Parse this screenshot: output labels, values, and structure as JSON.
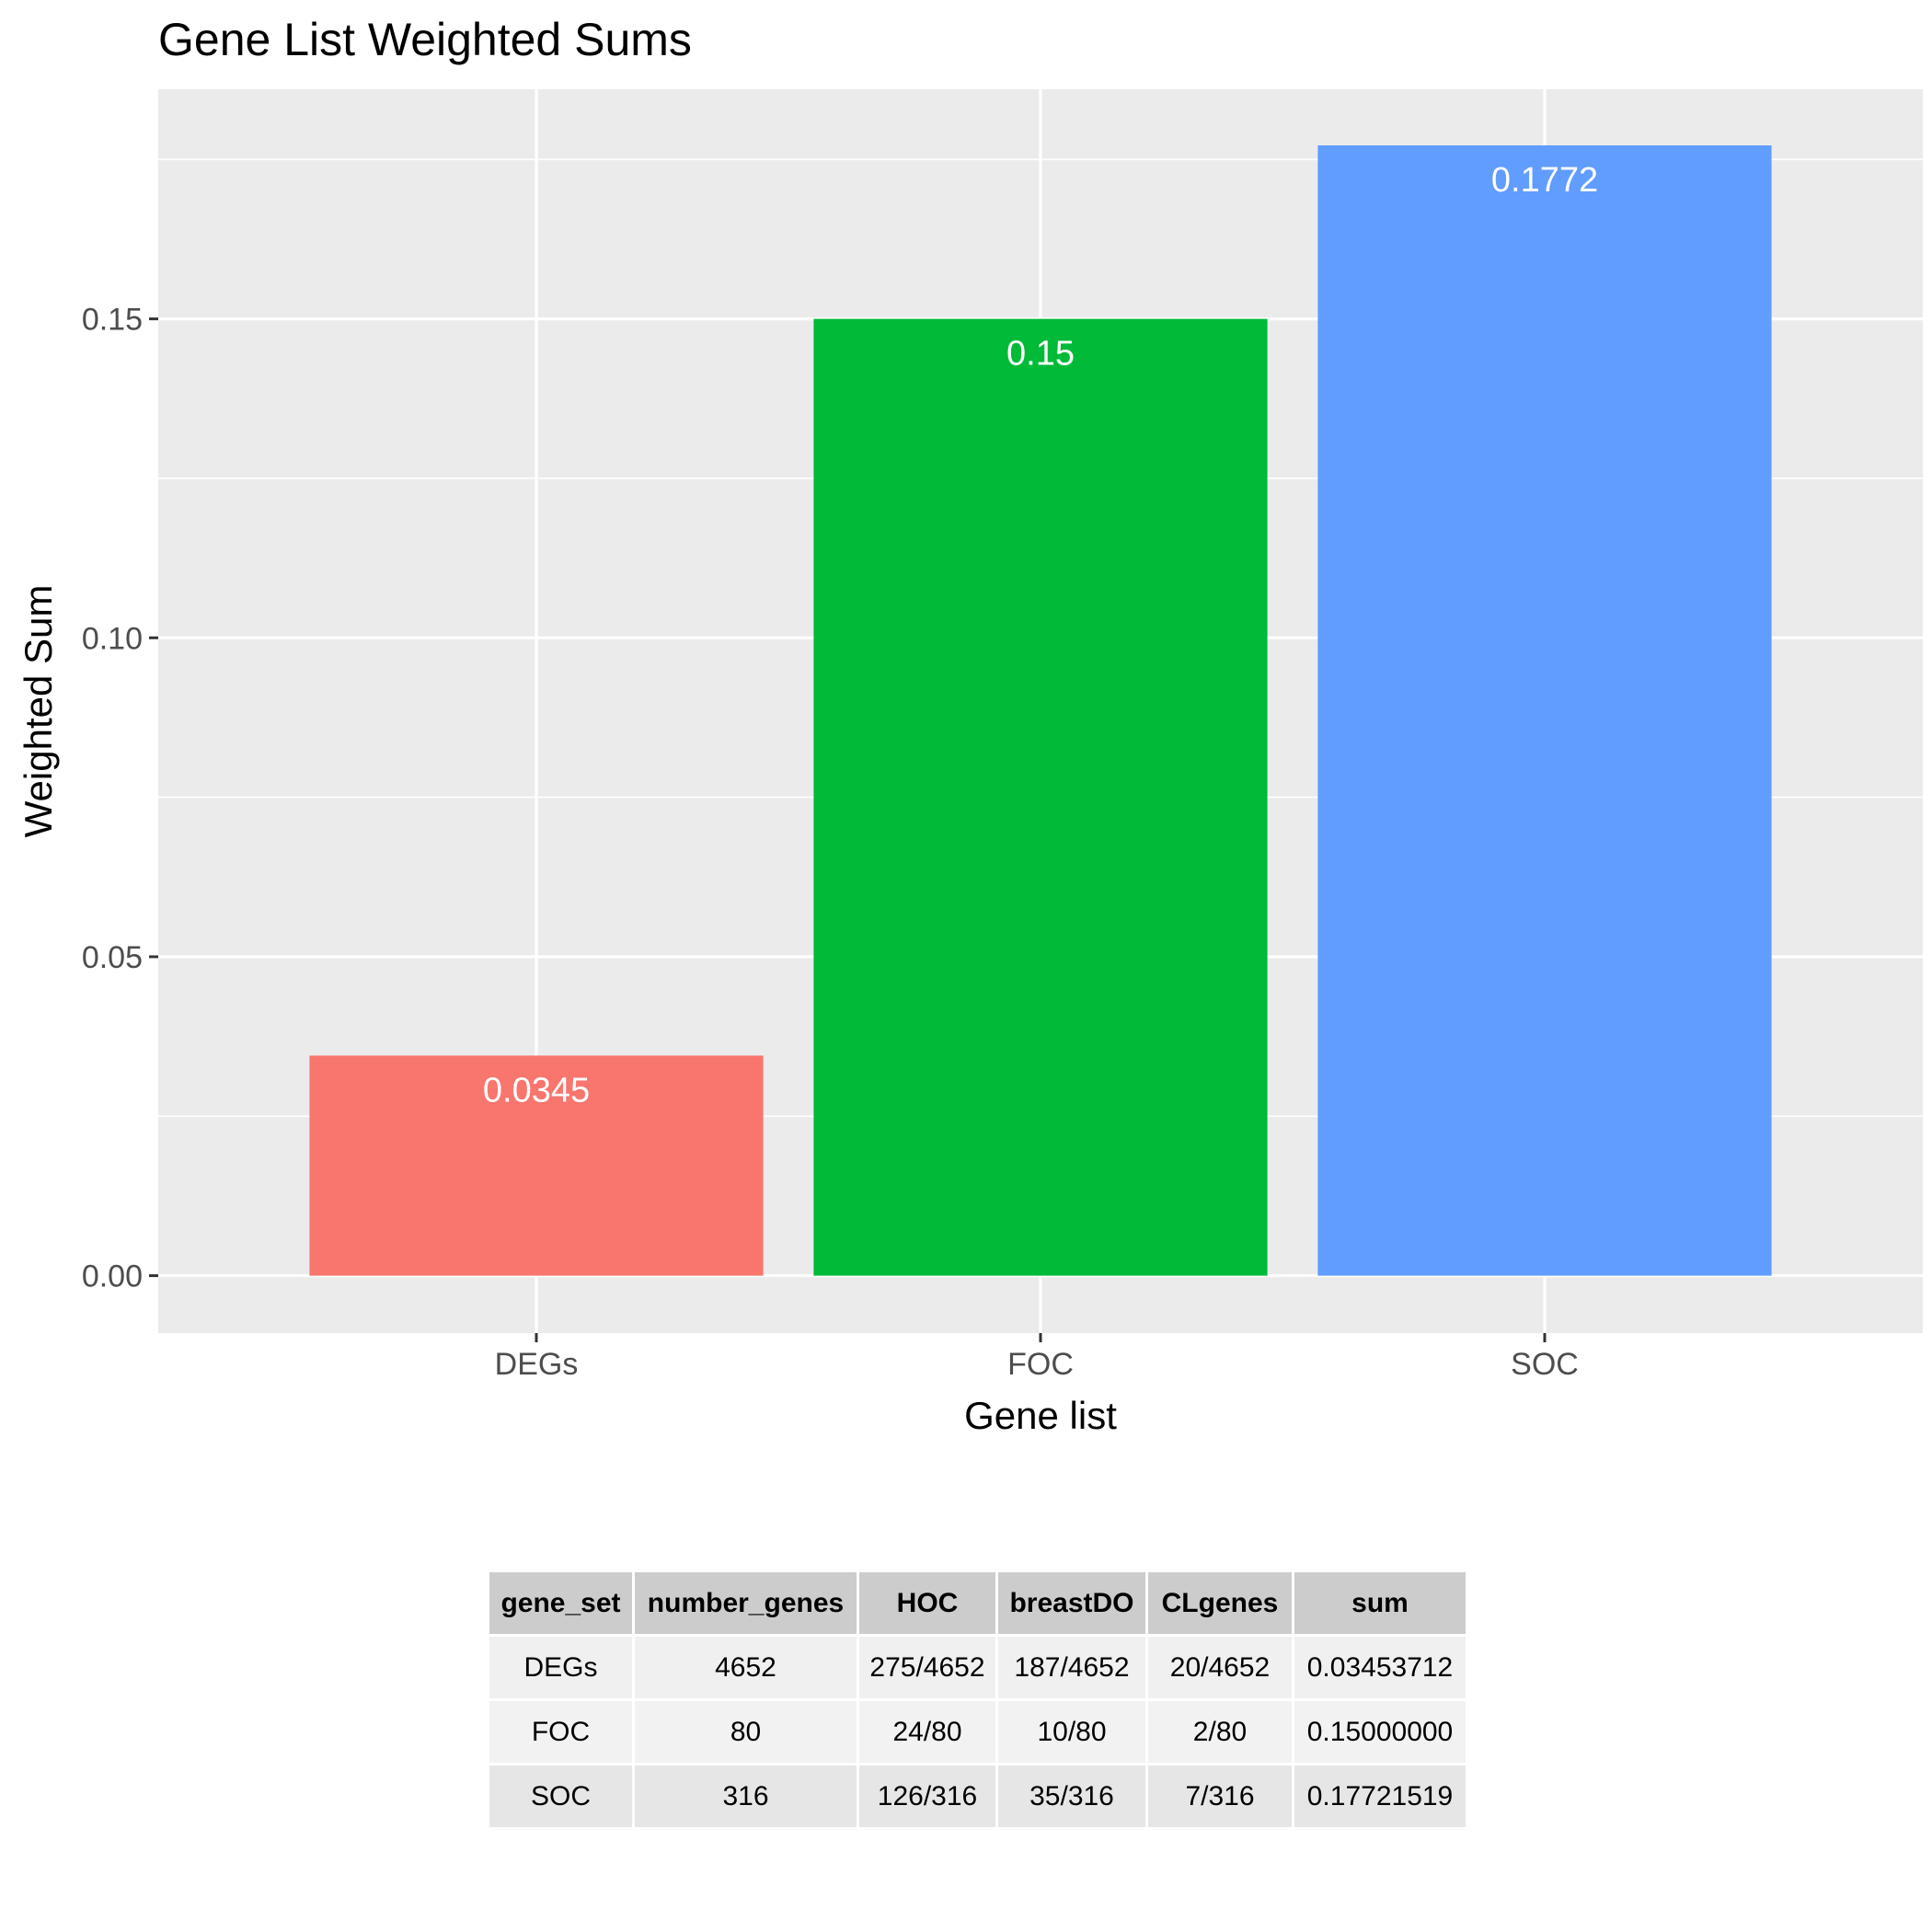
{
  "chart_data": {
    "type": "bar",
    "title": "Gene List Weighted Sums",
    "xlabel": "Gene list",
    "ylabel": "Weighted Sum",
    "categories": [
      "DEGs",
      "FOC",
      "SOC"
    ],
    "values": [
      0.0345,
      0.15,
      0.1772
    ],
    "data_labels": [
      "0.0345",
      "0.15",
      "0.1772"
    ],
    "colors": [
      "#F8766D",
      "#00BA38",
      "#619CFF"
    ],
    "ylim": [
      -0.009,
      0.186
    ],
    "y_ticks": [
      0.0,
      0.05,
      0.1,
      0.15
    ],
    "y_tick_labels": [
      "0.00",
      "0.05",
      "0.10",
      "0.15"
    ],
    "grid": true,
    "panel_background": "#EBEBEB"
  },
  "table": {
    "headers": [
      "gene_set",
      "number_genes",
      "HOC",
      "breastDO",
      "CLgenes",
      "sum"
    ],
    "rows": [
      [
        "DEGs",
        "4652",
        "275/4652",
        "187/4652",
        "20/4652",
        "0.03453712"
      ],
      [
        "FOC",
        "80",
        "24/80",
        "10/80",
        "2/80",
        "0.15000000"
      ],
      [
        "SOC",
        "316",
        "126/316",
        "35/316",
        "7/316",
        "0.17721519"
      ]
    ]
  }
}
